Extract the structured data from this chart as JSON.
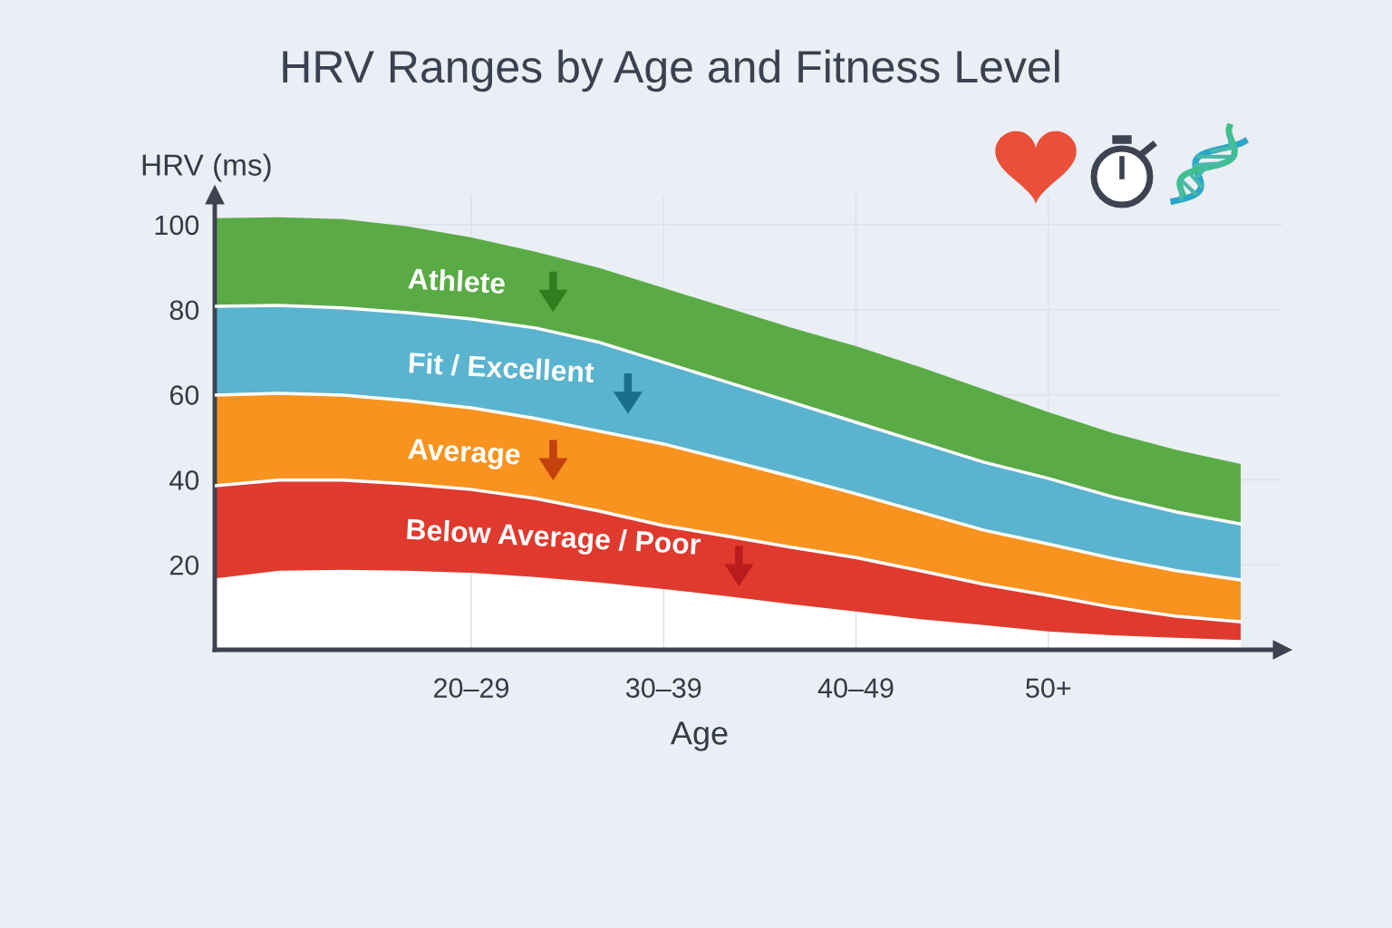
{
  "chart_data": {
    "type": "area",
    "stacked": true,
    "title": "HRV Ranges by Age and Fitness Level",
    "xlabel": "Age",
    "ylabel": "HRV (ms)",
    "categories": [
      null,
      null,
      null,
      null,
      "20–29",
      null,
      null,
      "30–39",
      null,
      null,
      "40–49",
      null,
      null,
      "50+",
      null,
      null,
      null
    ],
    "ylim": [
      0,
      107
    ],
    "yticks": [
      20,
      40,
      60,
      80,
      100
    ],
    "grid": true,
    "series": [
      {
        "color": "#ffffff",
        "values": [
          16.8,
          18.6,
          18.8,
          18.6,
          18.1,
          17.1,
          15.8,
          14.3,
          12.6,
          10.7,
          9.0,
          7.2,
          5.8,
          4.3,
          3.4,
          2.8,
          2.3
        ]
      },
      {
        "name": "Below Average / Poor",
        "color": "#e03a2e",
        "values": [
          21.8,
          21.3,
          21.1,
          20.4,
          19.6,
          18.5,
          16.8,
          14.9,
          14.1,
          13.4,
          12.7,
          11.4,
          9.6,
          8.5,
          6.6,
          5.1,
          4.3
        ]
      },
      {
        "name": "Average",
        "color": "#f7931e",
        "values": [
          21.3,
          20.4,
          20.0,
          19.6,
          19.2,
          18.8,
          18.8,
          19.2,
          17.9,
          16.6,
          15.0,
          13.8,
          12.7,
          12.1,
          11.5,
          10.7,
          9.8
        ]
      },
      {
        "name": "Fit / Excellent",
        "color": "#5ab4cf",
        "values": [
          20.9,
          20.7,
          20.5,
          20.7,
          20.9,
          21.3,
          20.9,
          19.2,
          18.3,
          17.5,
          16.8,
          16.4,
          16.0,
          15.4,
          14.5,
          13.8,
          13.2
        ]
      },
      {
        "name": "Athlete",
        "color": "#5aab45",
        "values": [
          20.7,
          20.7,
          20.9,
          20.3,
          19.2,
          17.9,
          17.5,
          17.5,
          17.5,
          17.5,
          17.9,
          17.7,
          17.1,
          15.6,
          15.0,
          14.6,
          14.1
        ]
      }
    ]
  }
}
